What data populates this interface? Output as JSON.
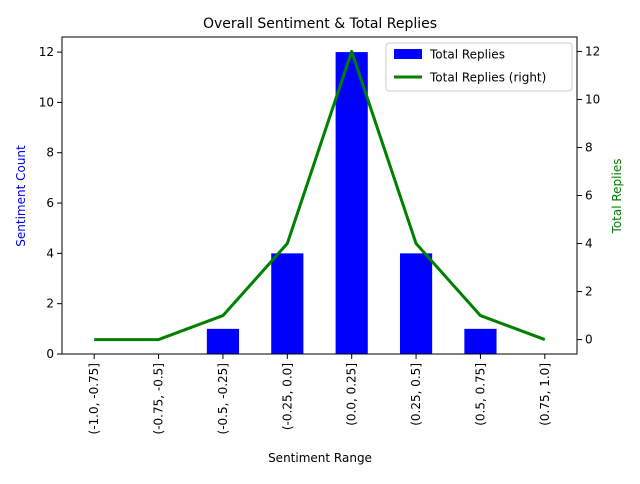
{
  "chart_data": {
    "type": "bar+line",
    "title": "Overall Sentiment & Total Replies",
    "xlabel": "Sentiment Range",
    "ylabel_left": "Sentiment Count",
    "ylabel_right": "Total Replies",
    "categories": [
      "(-1.0, -0.75]",
      "(-0.75, -0.5]",
      "(-0.5, -0.25]",
      "(-0.25, 0.0]",
      "(0.0, 0.25]",
      "(0.25, 0.5]",
      "(0.5, 0.75]",
      "(0.75, 1.0]"
    ],
    "series": [
      {
        "name": "Total Replies",
        "kind": "bar",
        "axis": "left",
        "color": "#0000ff",
        "values": [
          0,
          0,
          1,
          4,
          12,
          4,
          1,
          0
        ]
      },
      {
        "name": "Total Replies (right)",
        "kind": "line",
        "axis": "right",
        "color": "#008000",
        "values": [
          0,
          0,
          1,
          4,
          12,
          4,
          1,
          0
        ]
      }
    ],
    "ylim_left": [
      0,
      12.6
    ],
    "yticks_left": [
      0,
      2,
      4,
      6,
      8,
      10,
      12
    ],
    "ylim_right": [
      -0.6,
      12.6
    ],
    "yticks_right": [
      0,
      2,
      4,
      6,
      8,
      10,
      12
    ],
    "legend_position": "top-right",
    "grid": false
  }
}
